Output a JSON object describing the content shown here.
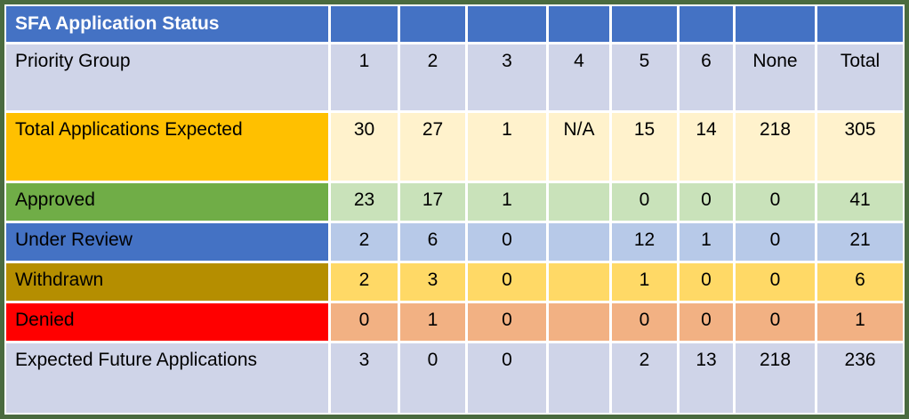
{
  "colors": {
    "outer_border": "#4A6B3F",
    "header_bar": "#4472C4",
    "title_text": "#FFFFFF",
    "body_text": "#000000",
    "priority_row_bg": "#CFD4E8",
    "grid_line": "#FFFFFF"
  },
  "chart_data": {
    "type": "table",
    "title": "SFA Application Status",
    "header_row_label": "Priority Group",
    "columns": [
      "1",
      "2",
      "3",
      "4",
      "5",
      "6",
      "None",
      "Total"
    ],
    "rows": [
      {
        "label": "Total Applications Expected",
        "values": [
          "30",
          "27",
          "1",
          "N/A",
          "15",
          "14",
          "218",
          "305"
        ],
        "label_bg": "#FFC000",
        "cell_bg": "#FFF2CC"
      },
      {
        "label": "Approved",
        "values": [
          "23",
          "17",
          "1",
          "",
          "0",
          "0",
          "0",
          "41"
        ],
        "label_bg": "#70AD47",
        "cell_bg": "#C9E2BA"
      },
      {
        "label": "Under Review",
        "values": [
          "2",
          "6",
          "0",
          "",
          "12",
          "1",
          "0",
          "21"
        ],
        "label_bg": "#4472C4",
        "cell_bg": "#B7C9E8"
      },
      {
        "label": "Withdrawn",
        "values": [
          "2",
          "3",
          "0",
          "",
          "1",
          "0",
          "0",
          "6"
        ],
        "label_bg": "#B58E00",
        "cell_bg": "#FFD966"
      },
      {
        "label": "Denied",
        "values": [
          "0",
          "1",
          "0",
          "",
          "0",
          "0",
          "0",
          "1"
        ],
        "label_bg": "#FF0000",
        "cell_bg": "#F2B183"
      },
      {
        "label": "Expected Future Applications",
        "values": [
          "3",
          "0",
          "0",
          "",
          "2",
          "13",
          "218",
          "236"
        ],
        "label_bg": "#CFD4E8",
        "cell_bg": "#CFD4E8"
      }
    ]
  }
}
